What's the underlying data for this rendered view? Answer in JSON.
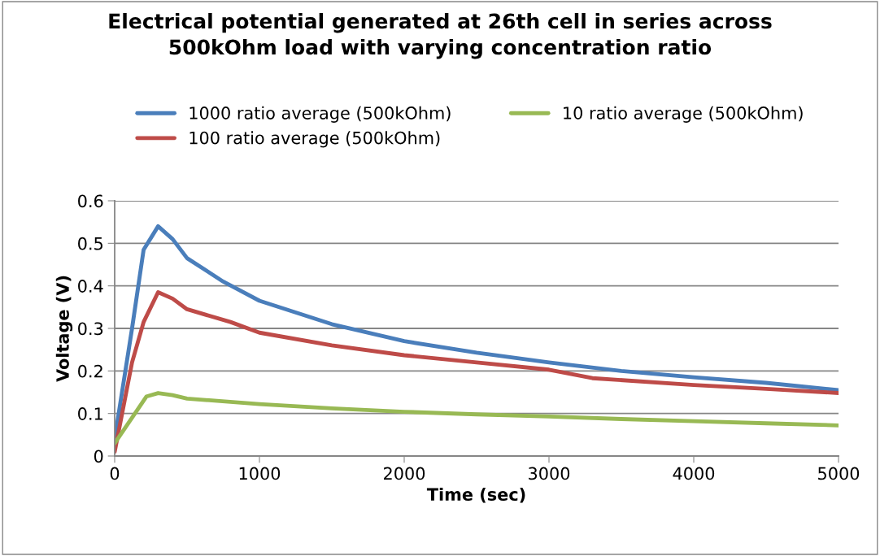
{
  "chart_data": {
    "type": "line",
    "title": "Electrical potential generated at 26th cell in series across\n500kOhm load with varying concentration ratio",
    "xlabel": "Time (sec)",
    "ylabel": "Voltage (V)",
    "xlim": [
      0,
      5000
    ],
    "xticks": [
      0,
      1000,
      2000,
      3000,
      4000,
      5000
    ],
    "ylim": [
      0,
      0.6
    ],
    "yticks": [
      0,
      0.1,
      0.2,
      0.3,
      0.4,
      0.5,
      0.6
    ],
    "grid": "y",
    "legend": "top",
    "marker": "none",
    "line_style": "solid",
    "series": [
      {
        "name": "1000 ratio average (500kOhm)",
        "color": "#4a7ebb",
        "x": [
          0,
          120,
          200,
          300,
          400,
          500,
          750,
          1000,
          1500,
          2000,
          2500,
          3000,
          3500,
          4000,
          4500,
          5000
        ],
        "values": [
          0.04,
          0.3,
          0.485,
          0.54,
          0.51,
          0.465,
          0.41,
          0.365,
          0.31,
          0.27,
          0.243,
          0.22,
          0.2,
          0.185,
          0.172,
          0.155
        ]
      },
      {
        "name": "100 ratio average (500kOhm)",
        "color": "#be4b48",
        "x": [
          0,
          120,
          200,
          300,
          400,
          500,
          800,
          1000,
          1500,
          2000,
          2500,
          3000,
          3300,
          4000,
          4500,
          5000
        ],
        "values": [
          0.01,
          0.22,
          0.315,
          0.385,
          0.37,
          0.345,
          0.315,
          0.29,
          0.26,
          0.237,
          0.22,
          0.203,
          0.183,
          0.167,
          0.158,
          0.148
        ]
      },
      {
        "name": "10 ratio average (500kOhm)",
        "color": "#98b954",
        "x": [
          0,
          100,
          220,
          300,
          400,
          500,
          1000,
          1500,
          2000,
          2500,
          3000,
          3500,
          4000,
          4500,
          5000
        ],
        "values": [
          0.03,
          0.08,
          0.14,
          0.148,
          0.143,
          0.135,
          0.122,
          0.112,
          0.104,
          0.098,
          0.093,
          0.087,
          0.082,
          0.077,
          0.072
        ]
      }
    ]
  }
}
